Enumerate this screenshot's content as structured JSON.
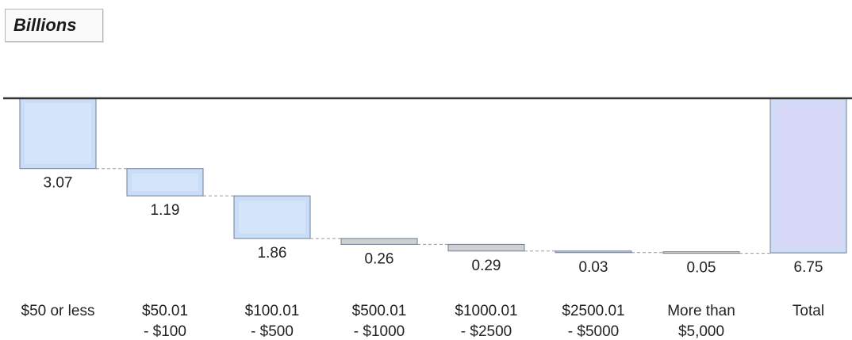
{
  "unit_label": "Billions",
  "chart_data": {
    "type": "bar",
    "subtype": "waterfall-descending",
    "unit": "Billions",
    "categories": [
      [
        "$50 or less"
      ],
      [
        "$50.01",
        "- $100"
      ],
      [
        "$100.01",
        "- $500"
      ],
      [
        "$500.01",
        "- $1000"
      ],
      [
        "$1000.01",
        "- $2500"
      ],
      [
        "$2500.01",
        "- $5000"
      ],
      [
        "More than",
        "$5,000"
      ],
      [
        "Total"
      ]
    ],
    "values": [
      3.07,
      1.19,
      1.86,
      0.26,
      0.29,
      0.03,
      0.05,
      6.75
    ],
    "value_labels": [
      "3.07",
      "1.19",
      "1.86",
      "0.26",
      "0.29",
      "0.03",
      "0.05",
      "6.75"
    ],
    "total_index": 7,
    "colors": {
      "bar_fill": "#c9ddf7",
      "bar_inner": "#dce9fb",
      "bar_stroke": "#6f7f96",
      "small_bar_fill": "#d0d0d0",
      "total_fill": "#cfdcf5",
      "total_highlight": "#dcd6f8",
      "baseline": "#333333",
      "connector": "#9a9a9a"
    }
  }
}
